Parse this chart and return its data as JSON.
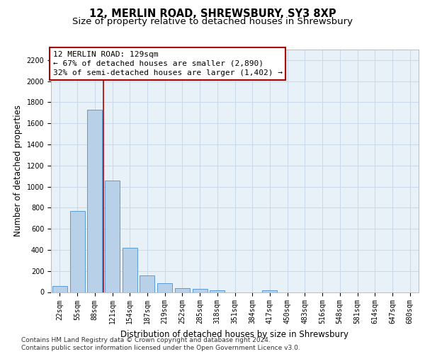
{
  "title1": "12, MERLIN ROAD, SHREWSBURY, SY3 8XP",
  "title2": "Size of property relative to detached houses in Shrewsbury",
  "xlabel": "Distribution of detached houses by size in Shrewsbury",
  "ylabel": "Number of detached properties",
  "footer1": "Contains HM Land Registry data © Crown copyright and database right 2024.",
  "footer2": "Contains public sector information licensed under the Open Government Licence v3.0.",
  "bar_labels": [
    "22sqm",
    "55sqm",
    "88sqm",
    "121sqm",
    "154sqm",
    "187sqm",
    "219sqm",
    "252sqm",
    "285sqm",
    "318sqm",
    "351sqm",
    "384sqm",
    "417sqm",
    "450sqm",
    "483sqm",
    "516sqm",
    "548sqm",
    "581sqm",
    "614sqm",
    "647sqm",
    "680sqm"
  ],
  "bar_values": [
    55,
    770,
    1730,
    1060,
    420,
    155,
    85,
    40,
    30,
    20,
    0,
    0,
    20,
    0,
    0,
    0,
    0,
    0,
    0,
    0,
    0
  ],
  "bar_color": "#b8d0e8",
  "bar_edge_color": "#5b9bd5",
  "annotation_text_line1": "12 MERLIN ROAD: 129sqm",
  "annotation_text_line2": "← 67% of detached houses are smaller (2,890)",
  "annotation_text_line3": "32% of semi-detached houses are larger (1,402) →",
  "annotation_box_color": "#ffffff",
  "annotation_box_edge": "#aa0000",
  "vline_color": "#aa0000",
  "vline_x": 2.5,
  "ylim": [
    0,
    2300
  ],
  "yticks": [
    0,
    200,
    400,
    600,
    800,
    1000,
    1200,
    1400,
    1600,
    1800,
    2000,
    2200
  ],
  "grid_color": "#c8d8e8",
  "plot_bg_color": "#e8f0f8",
  "title1_fontsize": 10.5,
  "title2_fontsize": 9.5,
  "tick_fontsize": 7,
  "ylabel_fontsize": 8.5,
  "xlabel_fontsize": 8.5,
  "annot_fontsize": 8,
  "footer_fontsize": 6.5
}
